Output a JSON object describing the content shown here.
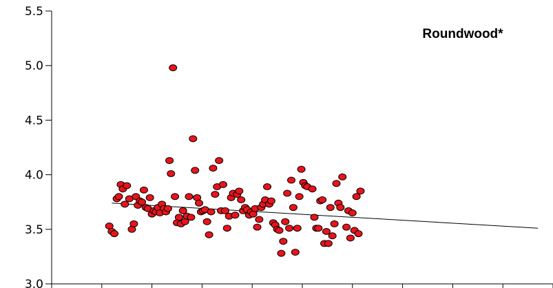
{
  "chart_data": {
    "type": "scatter",
    "title": "Roundwood*",
    "xlabel": "",
    "ylabel": "",
    "xlim": [
      0,
      10
    ],
    "ylim": [
      3.0,
      5.5
    ],
    "x_ticks": [
      0,
      1,
      2,
      3,
      4,
      5,
      6,
      7,
      8,
      9,
      10
    ],
    "y_ticks": [
      3.0,
      3.5,
      4.0,
      4.5,
      5.0,
      5.5
    ],
    "y_tick_labels": [
      "3.0",
      "3.5",
      "4.0",
      "4.5",
      "5.0",
      "5.5"
    ],
    "grid": false,
    "marker_color": "#e8141c",
    "trend_line": {
      "x": [
        1.2,
        9.7
      ],
      "y": [
        3.74,
        3.51
      ]
    },
    "points": [
      {
        "x": 1.15,
        "y": 3.53
      },
      {
        "x": 1.2,
        "y": 3.48
      },
      {
        "x": 1.25,
        "y": 3.46
      },
      {
        "x": 1.3,
        "y": 3.78
      },
      {
        "x": 1.34,
        "y": 3.8
      },
      {
        "x": 1.38,
        "y": 3.91
      },
      {
        "x": 1.42,
        "y": 3.87
      },
      {
        "x": 1.46,
        "y": 3.73
      },
      {
        "x": 1.5,
        "y": 3.9
      },
      {
        "x": 1.55,
        "y": 3.78
      },
      {
        "x": 1.6,
        "y": 3.5
      },
      {
        "x": 1.64,
        "y": 3.55
      },
      {
        "x": 1.68,
        "y": 3.8
      },
      {
        "x": 1.72,
        "y": 3.72
      },
      {
        "x": 1.76,
        "y": 3.76
      },
      {
        "x": 1.8,
        "y": 3.75
      },
      {
        "x": 1.84,
        "y": 3.86
      },
      {
        "x": 1.88,
        "y": 3.7
      },
      {
        "x": 1.92,
        "y": 3.69
      },
      {
        "x": 1.96,
        "y": 3.79
      },
      {
        "x": 2.0,
        "y": 3.64
      },
      {
        "x": 2.04,
        "y": 3.67
      },
      {
        "x": 2.08,
        "y": 3.66
      },
      {
        "x": 2.12,
        "y": 3.7
      },
      {
        "x": 2.16,
        "y": 3.65
      },
      {
        "x": 2.2,
        "y": 3.73
      },
      {
        "x": 2.24,
        "y": 3.69
      },
      {
        "x": 2.28,
        "y": 3.66
      },
      {
        "x": 2.32,
        "y": 3.69
      },
      {
        "x": 2.35,
        "y": 4.13
      },
      {
        "x": 2.38,
        "y": 4.01
      },
      {
        "x": 2.42,
        "y": 4.98
      },
      {
        "x": 2.46,
        "y": 3.8
      },
      {
        "x": 2.5,
        "y": 3.56
      },
      {
        "x": 2.54,
        "y": 3.61
      },
      {
        "x": 2.58,
        "y": 3.55
      },
      {
        "x": 2.62,
        "y": 3.67
      },
      {
        "x": 2.66,
        "y": 3.57
      },
      {
        "x": 2.7,
        "y": 3.62
      },
      {
        "x": 2.74,
        "y": 3.8
      },
      {
        "x": 2.78,
        "y": 3.61
      },
      {
        "x": 2.82,
        "y": 4.33
      },
      {
        "x": 2.86,
        "y": 4.04
      },
      {
        "x": 2.9,
        "y": 3.79
      },
      {
        "x": 2.94,
        "y": 3.74
      },
      {
        "x": 2.98,
        "y": 3.66
      },
      {
        "x": 3.02,
        "y": 3.67
      },
      {
        "x": 3.06,
        "y": 3.68
      },
      {
        "x": 3.1,
        "y": 3.57
      },
      {
        "x": 3.14,
        "y": 3.45
      },
      {
        "x": 3.18,
        "y": 3.66
      },
      {
        "x": 3.22,
        "y": 4.06
      },
      {
        "x": 3.26,
        "y": 3.82
      },
      {
        "x": 3.3,
        "y": 3.89
      },
      {
        "x": 3.34,
        "y": 4.13
      },
      {
        "x": 3.38,
        "y": 3.67
      },
      {
        "x": 3.42,
        "y": 3.91
      },
      {
        "x": 3.46,
        "y": 3.67
      },
      {
        "x": 3.5,
        "y": 3.51
      },
      {
        "x": 3.54,
        "y": 3.62
      },
      {
        "x": 3.58,
        "y": 3.79
      },
      {
        "x": 3.62,
        "y": 3.83
      },
      {
        "x": 3.66,
        "y": 3.63
      },
      {
        "x": 3.7,
        "y": 3.82
      },
      {
        "x": 3.74,
        "y": 3.85
      },
      {
        "x": 3.78,
        "y": 3.77
      },
      {
        "x": 3.82,
        "y": 3.67
      },
      {
        "x": 3.86,
        "y": 3.7
      },
      {
        "x": 3.9,
        "y": 3.68
      },
      {
        "x": 3.94,
        "y": 3.63
      },
      {
        "x": 3.98,
        "y": 3.66
      },
      {
        "x": 4.02,
        "y": 3.64
      },
      {
        "x": 4.06,
        "y": 3.69
      },
      {
        "x": 4.1,
        "y": 3.52
      },
      {
        "x": 4.14,
        "y": 3.59
      },
      {
        "x": 4.18,
        "y": 3.7
      },
      {
        "x": 4.22,
        "y": 3.73
      },
      {
        "x": 4.26,
        "y": 3.77
      },
      {
        "x": 4.3,
        "y": 3.89
      },
      {
        "x": 4.34,
        "y": 3.73
      },
      {
        "x": 4.38,
        "y": 3.76
      },
      {
        "x": 4.42,
        "y": 3.56
      },
      {
        "x": 4.46,
        "y": 3.54
      },
      {
        "x": 4.5,
        "y": 3.5
      },
      {
        "x": 4.54,
        "y": 3.49
      },
      {
        "x": 4.58,
        "y": 3.28
      },
      {
        "x": 4.62,
        "y": 3.39
      },
      {
        "x": 4.66,
        "y": 3.57
      },
      {
        "x": 4.7,
        "y": 3.83
      },
      {
        "x": 4.74,
        "y": 3.51
      },
      {
        "x": 4.78,
        "y": 3.95
      },
      {
        "x": 4.82,
        "y": 3.7
      },
      {
        "x": 4.86,
        "y": 3.29
      },
      {
        "x": 4.9,
        "y": 3.51
      },
      {
        "x": 4.94,
        "y": 3.8
      },
      {
        "x": 4.98,
        "y": 4.05
      },
      {
        "x": 5.02,
        "y": 3.93
      },
      {
        "x": 5.06,
        "y": 3.9
      },
      {
        "x": 5.1,
        "y": 3.89
      },
      {
        "x": 5.2,
        "y": 3.87
      },
      {
        "x": 5.24,
        "y": 3.61
      },
      {
        "x": 5.28,
        "y": 3.51
      },
      {
        "x": 5.32,
        "y": 3.51
      },
      {
        "x": 5.36,
        "y": 3.76
      },
      {
        "x": 5.4,
        "y": 3.77
      },
      {
        "x": 5.44,
        "y": 3.37
      },
      {
        "x": 5.48,
        "y": 3.48
      },
      {
        "x": 5.52,
        "y": 3.37
      },
      {
        "x": 5.56,
        "y": 3.7
      },
      {
        "x": 5.6,
        "y": 3.44
      },
      {
        "x": 5.64,
        "y": 3.55
      },
      {
        "x": 5.68,
        "y": 3.92
      },
      {
        "x": 5.72,
        "y": 3.74
      },
      {
        "x": 5.76,
        "y": 3.7
      },
      {
        "x": 5.8,
        "y": 3.98
      },
      {
        "x": 5.88,
        "y": 3.52
      },
      {
        "x": 5.92,
        "y": 3.67
      },
      {
        "x": 5.96,
        "y": 3.42
      },
      {
        "x": 6.0,
        "y": 3.65
      },
      {
        "x": 6.04,
        "y": 3.49
      },
      {
        "x": 6.08,
        "y": 3.8
      },
      {
        "x": 6.12,
        "y": 3.46
      },
      {
        "x": 6.16,
        "y": 3.85
      }
    ]
  }
}
